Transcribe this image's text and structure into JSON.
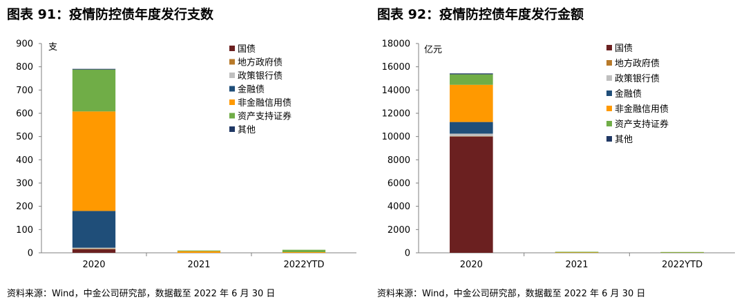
{
  "charts": [
    {
      "figure_title": "图表 91：疫情防控债年度发行支数",
      "source": "资料来源：Wind，中金公司研究部，数据截至 2022 年 6 月 30 日"
    },
    {
      "figure_title": "图表 92：疫情防控债年度发行金额",
      "source": "资料来源：Wind，中金公司研究部，数据截至 2022 年 6 月 30 日"
    }
  ],
  "chart_data": [
    {
      "type": "bar",
      "stacked": true,
      "title": "图表 91：疫情防控债年度发行支数",
      "ylabel": "支",
      "xlabel": "",
      "ylim": [
        0,
        900
      ],
      "yticks": [
        "0",
        "100",
        "200",
        "300",
        "400",
        "500",
        "600",
        "700",
        "800",
        "900"
      ],
      "categories": [
        "2020",
        "2021",
        "2022YTD"
      ],
      "legend_position": "top-right",
      "series": [
        {
          "name": "国债",
          "color": "#6b2020",
          "values": [
            15,
            0,
            0
          ]
        },
        {
          "name": "地方政府债",
          "color": "#b87a2a",
          "values": [
            2,
            0,
            0
          ]
        },
        {
          "name": "政策银行债",
          "color": "#bfbfbf",
          "values": [
            5,
            0,
            0
          ]
        },
        {
          "name": "金融债",
          "color": "#1f4e79",
          "values": [
            158,
            0,
            0
          ]
        },
        {
          "name": "非金融信用债",
          "color": "#ff9900",
          "values": [
            428,
            7,
            3
          ]
        },
        {
          "name": "资产支持证券",
          "color": "#70ad47",
          "values": [
            180,
            1,
            10
          ]
        },
        {
          "name": "其他",
          "color": "#203864",
          "values": [
            3,
            0,
            0
          ]
        }
      ]
    },
    {
      "type": "bar",
      "stacked": true,
      "title": "图表 92：疫情防控债年度发行金额",
      "ylabel": "亿元",
      "xlabel": "",
      "ylim": [
        0,
        18000
      ],
      "yticks": [
        "0",
        "2000",
        "4000",
        "6000",
        "8000",
        "10000",
        "12000",
        "14000",
        "16000",
        "18000"
      ],
      "categories": [
        "2020",
        "2021",
        "2022YTD"
      ],
      "legend_position": "top-right",
      "series": [
        {
          "name": "国债",
          "color": "#6b2020",
          "values": [
            10000,
            0,
            0
          ]
        },
        {
          "name": "地方政府债",
          "color": "#b87a2a",
          "values": [
            20,
            0,
            0
          ]
        },
        {
          "name": "政策银行债",
          "color": "#bfbfbf",
          "values": [
            230,
            0,
            0
          ]
        },
        {
          "name": "金融债",
          "color": "#1f4e79",
          "values": [
            1000,
            0,
            0
          ]
        },
        {
          "name": "非金融信用债",
          "color": "#ff9900",
          "values": [
            3200,
            30,
            10
          ]
        },
        {
          "name": "资产支持证券",
          "color": "#70ad47",
          "values": [
            900,
            5,
            30
          ]
        },
        {
          "name": "其他",
          "color": "#203864",
          "values": [
            80,
            0,
            0
          ]
        }
      ]
    }
  ]
}
